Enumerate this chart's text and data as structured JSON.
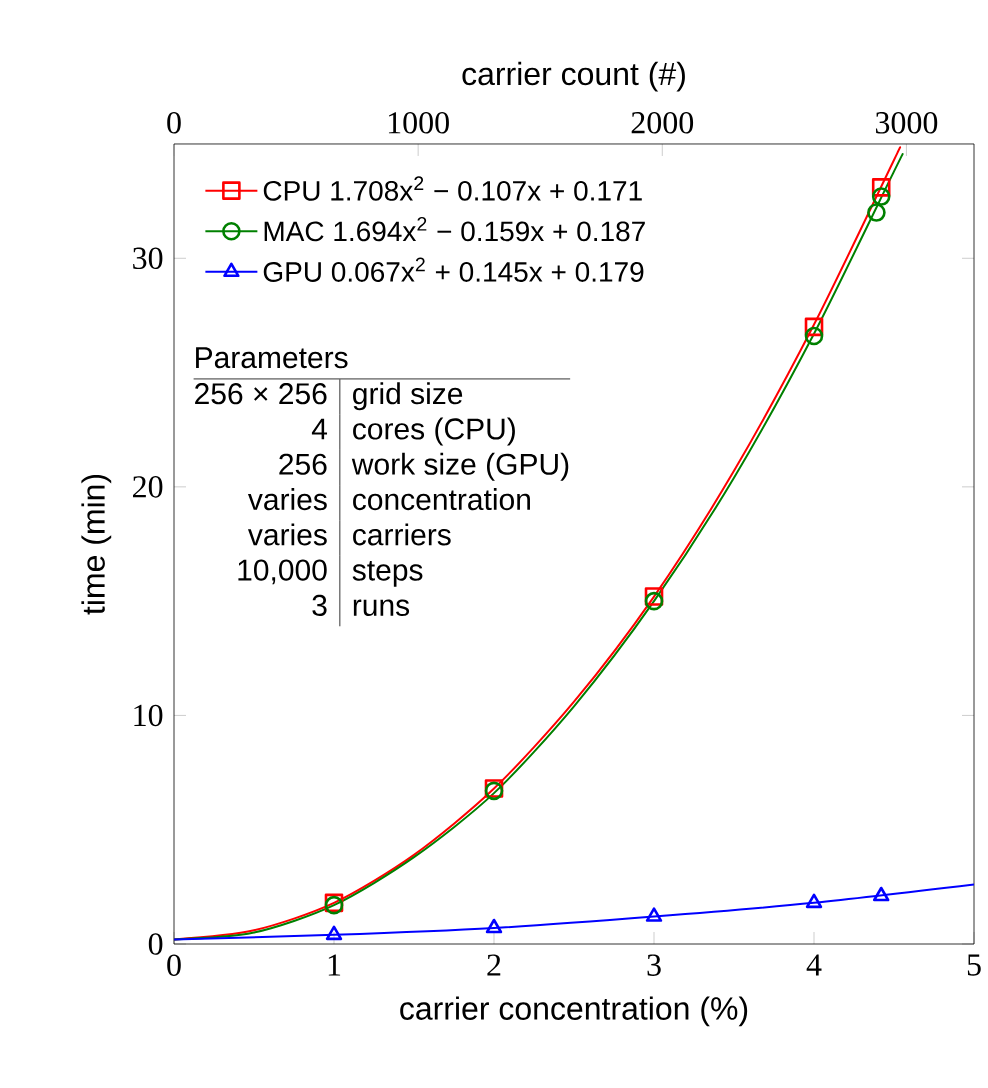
{
  "chart_data": {
    "type": "scatter",
    "xlabel": "carrier concentration (%)",
    "ylabel": "time (min)",
    "x2label": "carrier count (#)",
    "xlim": [
      0,
      5
    ],
    "xticks": [
      0,
      1,
      2,
      3,
      4,
      5
    ],
    "ylim": [
      0,
      35
    ],
    "yticks": [
      0,
      10,
      20,
      30
    ],
    "x2lim": [
      0,
      3276.8
    ],
    "x2ticks": [
      0,
      1000,
      2000,
      3000
    ],
    "legend": "top left",
    "series": [
      {
        "name": "CPU 1.708x$^{2}$ − 0.107x + 0.171",
        "marker": "square",
        "color": "#ff0000",
        "x": [
          1,
          2,
          3,
          4,
          4.42
        ],
        "values": [
          1.8,
          6.8,
          15.2,
          27.0,
          33.1
        ]
      },
      {
        "name": "MAC 1.694x$^{2}$ − 0.159x + 0.187",
        "marker": "circle",
        "color": "#008000",
        "x": [
          1,
          2,
          3,
          4,
          4.39,
          4.42
        ],
        "values": [
          1.7,
          6.7,
          15.0,
          26.6,
          32.0,
          32.7
        ]
      },
      {
        "name": "GPU 0.067x$^{2}$ + 0.145x + 0.179",
        "marker": "triangle",
        "color": "#0000ff",
        "x": [
          1,
          2,
          3,
          4,
          4.42
        ],
        "values": [
          0.4,
          0.7,
          1.2,
          1.8,
          2.1
        ]
      },
      {
        "type": "line",
        "marker": "none",
        "color": "#ff0000",
        "x": [
          0,
          0.5,
          1,
          1.5,
          2,
          2.5,
          3,
          3.5,
          4,
          4.5,
          4.52
        ],
        "values": [
          0.2,
          0.6,
          1.8,
          3.9,
          6.8,
          10.6,
          15.2,
          20.7,
          27.1,
          34.3,
          34.6
        ]
      },
      {
        "type": "line",
        "marker": "none",
        "color": "#008000",
        "x": [
          0,
          0.5,
          1,
          1.5,
          2,
          2.5,
          3,
          3.5,
          4,
          4.5,
          4.55
        ],
        "values": [
          0.2,
          0.5,
          1.7,
          3.8,
          6.6,
          10.4,
          15.0,
          20.4,
          26.7,
          33.8,
          34.5
        ]
      },
      {
        "type": "line",
        "marker": "none",
        "color": "#0000ff",
        "x": [
          0,
          1,
          2,
          3,
          4,
          5
        ],
        "values": [
          0.2,
          0.4,
          0.7,
          1.2,
          1.8,
          2.6
        ]
      }
    ],
    "annotations": [
      "Parameters",
      "256 × 256",
      "grid size",
      "4",
      "cores (CPU)",
      "256",
      "work size (GPU)",
      "varies",
      "concentration",
      "varies",
      "carriers",
      "10,000",
      "steps",
      "3",
      "runs"
    ]
  }
}
